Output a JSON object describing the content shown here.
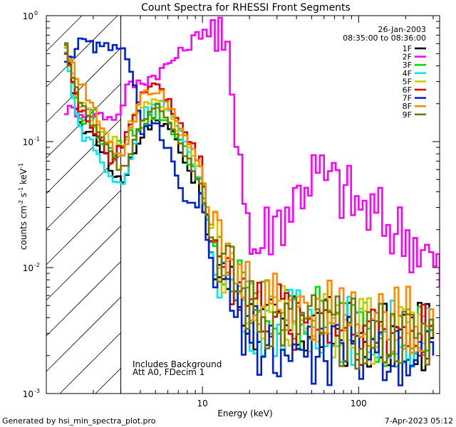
{
  "chart_data": {
    "type": "line",
    "title": "Count Spectra for RHESSI Front Segments",
    "xlabel": "Energy (keV)",
    "ylabel_base": "counts cm",
    "ylabel_exp1": "-2",
    "ylabel_mid": " s",
    "ylabel_exp2": "-1",
    "ylabel_end": " keV",
    "ylabel_exp3": "-1",
    "x_scale": "log",
    "y_scale": "log",
    "xlim": [
      1.0,
      330
    ],
    "ylim": [
      0.001,
      1.0
    ],
    "x_ticks": [
      {
        "value": 10,
        "label": "10"
      },
      {
        "value": 100,
        "label": "100"
      }
    ],
    "y_ticks": [
      {
        "value": 1.0,
        "base": "10",
        "exp": "0"
      },
      {
        "value": 0.1,
        "base": "10",
        "exp": "-1"
      },
      {
        "value": 0.01,
        "base": "10",
        "exp": "-2"
      },
      {
        "value": 0.001,
        "base": "10",
        "exp": "-3"
      }
    ],
    "date": "26-Jan-2003",
    "time_range": "08:35:00 to 08:36:00",
    "annotation_1": "Includes Background",
    "annotation_2": "Att A0, FDecim 1",
    "hatched_region_keV": [
      1.0,
      3.0
    ],
    "legend_position": "top-right",
    "series": [
      {
        "name": "1F",
        "color": "#000000",
        "values": [
          [
            1.3,
            0.55
          ],
          [
            1.6,
            0.13
          ],
          [
            1.9,
            0.12
          ],
          [
            2.2,
            0.09
          ],
          [
            2.5,
            0.06
          ],
          [
            3.0,
            0.05
          ],
          [
            4.0,
            0.12
          ],
          [
            5.0,
            0.15
          ],
          [
            6.0,
            0.13
          ],
          [
            7.0,
            0.09
          ],
          [
            8.0,
            0.06
          ],
          [
            9.5,
            0.04
          ],
          [
            11,
            0.012
          ],
          [
            15,
            0.007
          ],
          [
            20,
            0.004
          ],
          [
            30,
            0.003
          ],
          [
            50,
            0.0035
          ],
          [
            80,
            0.003
          ],
          [
            120,
            0.0028
          ],
          [
            180,
            0.0028
          ],
          [
            300,
            0.0028
          ]
        ]
      },
      {
        "name": "2F",
        "color": "#ff00ff",
        "values": [
          [
            1.3,
            0.18
          ],
          [
            1.8,
            0.17
          ],
          [
            2.3,
            0.16
          ],
          [
            2.8,
            0.16
          ],
          [
            3.2,
            0.27
          ],
          [
            4.0,
            0.3
          ],
          [
            5.0,
            0.35
          ],
          [
            6.0,
            0.42
          ],
          [
            7.0,
            0.5
          ],
          [
            8.5,
            0.65
          ],
          [
            10,
            0.78
          ],
          [
            12,
            0.65
          ],
          [
            14,
            0.4
          ],
          [
            16,
            0.16
          ],
          [
            18,
            0.05
          ],
          [
            20,
            0.014
          ],
          [
            22,
            0.015
          ],
          [
            25,
            0.02
          ],
          [
            30,
            0.025
          ],
          [
            38,
            0.035
          ],
          [
            45,
            0.052
          ],
          [
            50,
            0.055
          ],
          [
            60,
            0.05
          ],
          [
            80,
            0.04
          ],
          [
            100,
            0.03
          ],
          [
            150,
            0.022
          ],
          [
            200,
            0.018
          ],
          [
            250,
            0.015
          ],
          [
            300,
            0.01
          ],
          [
            330,
            0.007
          ]
        ]
      },
      {
        "name": "3F",
        "color": "#00dd00",
        "values": [
          [
            1.3,
            0.6
          ],
          [
            1.6,
            0.15
          ],
          [
            1.9,
            0.16
          ],
          [
            2.2,
            0.1
          ],
          [
            2.5,
            0.08
          ],
          [
            3.0,
            0.1
          ],
          [
            4.0,
            0.14
          ],
          [
            5.0,
            0.17
          ],
          [
            6.0,
            0.14
          ],
          [
            7.0,
            0.1
          ],
          [
            8.0,
            0.07
          ],
          [
            9.5,
            0.05
          ],
          [
            11,
            0.015
          ],
          [
            15,
            0.008
          ],
          [
            20,
            0.005
          ],
          [
            30,
            0.004
          ],
          [
            50,
            0.004
          ],
          [
            80,
            0.0035
          ],
          [
            120,
            0.0032
          ],
          [
            180,
            0.003
          ],
          [
            300,
            0.003
          ]
        ]
      },
      {
        "name": "4F",
        "color": "#00e5ee",
        "values": [
          [
            1.3,
            0.5
          ],
          [
            1.6,
            0.12
          ],
          [
            1.9,
            0.1
          ],
          [
            2.2,
            0.07
          ],
          [
            2.5,
            0.05
          ],
          [
            3.0,
            0.045
          ],
          [
            4.0,
            0.16
          ],
          [
            5.0,
            0.22
          ],
          [
            6.0,
            0.17
          ],
          [
            7.0,
            0.11
          ],
          [
            8.0,
            0.08
          ],
          [
            9.5,
            0.05
          ],
          [
            11,
            0.014
          ],
          [
            15,
            0.007
          ],
          [
            20,
            0.004
          ],
          [
            30,
            0.0035
          ],
          [
            50,
            0.004
          ],
          [
            80,
            0.0033
          ],
          [
            120,
            0.003
          ],
          [
            180,
            0.003
          ],
          [
            300,
            0.0028
          ]
        ]
      },
      {
        "name": "5F",
        "color": "#cccc00",
        "values": [
          [
            1.3,
            0.55
          ],
          [
            1.6,
            0.2
          ],
          [
            1.9,
            0.15
          ],
          [
            2.2,
            0.12
          ],
          [
            2.5,
            0.1
          ],
          [
            3.0,
            0.1
          ],
          [
            4.0,
            0.2
          ],
          [
            5.0,
            0.22
          ],
          [
            6.0,
            0.17
          ],
          [
            7.0,
            0.12
          ],
          [
            8.0,
            0.1
          ],
          [
            9.5,
            0.06
          ],
          [
            11,
            0.02
          ],
          [
            15,
            0.008
          ],
          [
            20,
            0.005
          ],
          [
            30,
            0.004
          ],
          [
            50,
            0.0038
          ],
          [
            80,
            0.0035
          ],
          [
            120,
            0.0032
          ],
          [
            180,
            0.003
          ],
          [
            300,
            0.003
          ]
        ]
      },
      {
        "name": "6F",
        "color": "#dd0000",
        "values": [
          [
            1.3,
            0.55
          ],
          [
            1.6,
            0.17
          ],
          [
            1.9,
            0.14
          ],
          [
            2.2,
            0.1
          ],
          [
            2.5,
            0.07
          ],
          [
            3.0,
            0.09
          ],
          [
            4.0,
            0.26
          ],
          [
            5.0,
            0.28
          ],
          [
            6.0,
            0.2
          ],
          [
            7.0,
            0.14
          ],
          [
            8.0,
            0.1
          ],
          [
            9.5,
            0.07
          ],
          [
            11,
            0.018
          ],
          [
            15,
            0.008
          ],
          [
            20,
            0.005
          ],
          [
            30,
            0.004
          ],
          [
            50,
            0.004
          ],
          [
            80,
            0.0035
          ],
          [
            120,
            0.003
          ],
          [
            180,
            0.003
          ],
          [
            300,
            0.0028
          ]
        ]
      },
      {
        "name": "7F",
        "color": "#0022cc",
        "values": [
          [
            1.3,
            0.45
          ],
          [
            1.6,
            0.6
          ],
          [
            1.9,
            0.58
          ],
          [
            2.2,
            0.55
          ],
          [
            2.5,
            0.58
          ],
          [
            3.0,
            0.5
          ],
          [
            3.4,
            0.4
          ],
          [
            4.0,
            0.12
          ],
          [
            5.0,
            0.13
          ],
          [
            6.0,
            0.08
          ],
          [
            7.0,
            0.04
          ],
          [
            8.0,
            0.03
          ],
          [
            9.5,
            0.035
          ],
          [
            11,
            0.012
          ],
          [
            15,
            0.005
          ],
          [
            20,
            0.003
          ],
          [
            30,
            0.002
          ],
          [
            50,
            0.002
          ],
          [
            80,
            0.0022
          ],
          [
            120,
            0.0022
          ],
          [
            180,
            0.0022
          ],
          [
            300,
            0.002
          ]
        ]
      },
      {
        "name": "8F",
        "color": "#ff8800",
        "values": [
          [
            1.3,
            0.55
          ],
          [
            1.6,
            0.3
          ],
          [
            1.9,
            0.2
          ],
          [
            2.2,
            0.12
          ],
          [
            2.5,
            0.09
          ],
          [
            3.0,
            0.08
          ],
          [
            4.0,
            0.25
          ],
          [
            5.0,
            0.27
          ],
          [
            6.0,
            0.2
          ],
          [
            7.0,
            0.14
          ],
          [
            8.0,
            0.1
          ],
          [
            9.5,
            0.07
          ],
          [
            11,
            0.02
          ],
          [
            15,
            0.009
          ],
          [
            20,
            0.006
          ],
          [
            30,
            0.005
          ],
          [
            50,
            0.005
          ],
          [
            80,
            0.0045
          ],
          [
            120,
            0.004
          ],
          [
            180,
            0.0038
          ],
          [
            300,
            0.0035
          ]
        ]
      },
      {
        "name": "9F",
        "color": "#777700",
        "values": [
          [
            1.3,
            0.55
          ],
          [
            1.6,
            0.2
          ],
          [
            1.9,
            0.14
          ],
          [
            2.2,
            0.1
          ],
          [
            2.5,
            0.08
          ],
          [
            3.0,
            0.06
          ],
          [
            4.0,
            0.15
          ],
          [
            5.0,
            0.21
          ],
          [
            6.0,
            0.15
          ],
          [
            7.0,
            0.1
          ],
          [
            8.0,
            0.07
          ],
          [
            9.5,
            0.05
          ],
          [
            11,
            0.018
          ],
          [
            15,
            0.008
          ],
          [
            20,
            0.0045
          ],
          [
            30,
            0.0035
          ],
          [
            50,
            0.0035
          ],
          [
            80,
            0.003
          ],
          [
            120,
            0.003
          ],
          [
            180,
            0.0028
          ],
          [
            300,
            0.0028
          ]
        ]
      }
    ]
  },
  "footer": {
    "generated_by": "Generated by hsi_min_spectra_plot.pro",
    "timestamp": "7-Apr-2023 05:12"
  }
}
